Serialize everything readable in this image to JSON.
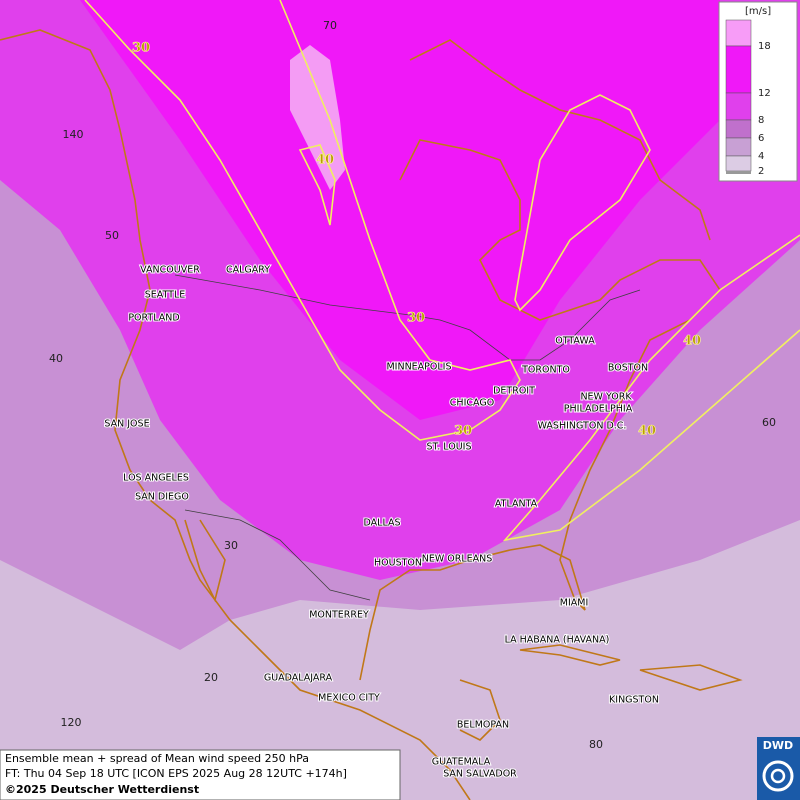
{
  "map": {
    "legend": {
      "unit": "[m/s]",
      "levels": [
        18,
        12,
        8,
        6,
        4,
        2
      ]
    },
    "cities": [
      "VANCOUVER",
      "CALGARY",
      "SEATTLE",
      "PORTLAND",
      "MINNEAPOLIS",
      "TORONTO",
      "OTTAWA",
      "DETROIT",
      "CHICAGO",
      "BOSTON",
      "NEW YORK",
      "PHILADELPHIA",
      "WASHINGTON D.C.",
      "ST. LOUIS",
      "SAN JOSE",
      "LOS ANGELES",
      "SAN DIEGO",
      "DALLAS",
      "ATLANTA",
      "HOUSTON",
      "NEW ORLEANS",
      "MIAMI",
      "MONTERREY",
      "LA HABANA (HAVANA)",
      "GUADALAJARA",
      "MEXICO CITY",
      "KINGSTON",
      "BELMOPAN",
      "GUATEMALA",
      "SAN SALVADOR"
    ],
    "contour_labels": [
      30,
      40,
      30,
      30,
      40,
      40
    ],
    "grid_labels": [
      70,
      140,
      50,
      40,
      30,
      20,
      120,
      60,
      80
    ],
    "footer": [
      "Ensemble mean + spread of Mean wind speed 250 hPa",
      "FT: Thu 04 Sep 18 UTC [ICON EPS 2025 Aug 28 12UTC +174h]",
      "©2025 Deutscher Wetterdienst"
    ],
    "logo": "DWD"
  }
}
